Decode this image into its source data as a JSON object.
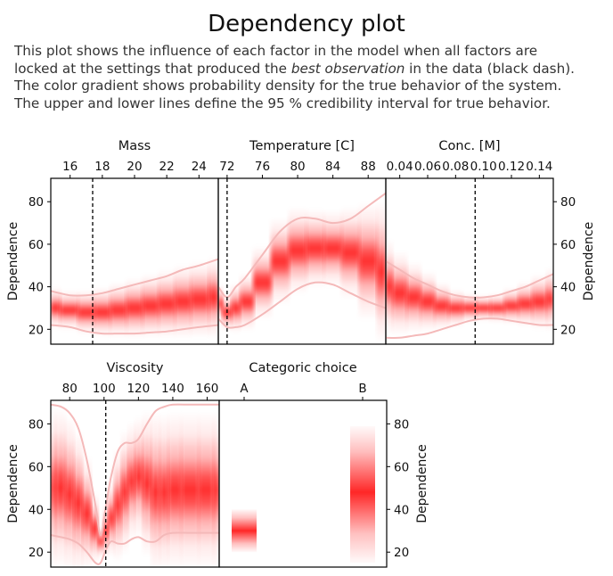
{
  "title": "Dependency plot",
  "description": {
    "line1": "This plot shows the influence of each factor in the model when all factors are",
    "line2_pre": "locked at the settings that produced the ",
    "line2_em": "best observation",
    "line2_post": " in the data (black dash).",
    "line3": "The color gradient shows probability density for the true behavior of the system.",
    "line4": "The upper and lower lines define the 95 % credibility interval for true behavior."
  },
  "colors": {
    "density": "#ff0000",
    "interval": "#f4b9b9",
    "marker": "#000000"
  },
  "chart_data": [
    {
      "type": "area",
      "title": "Mass",
      "ylabel": "Dependence",
      "ylabel_side": "left",
      "xlim": [
        14.8,
        25.2
      ],
      "ylim": [
        13,
        91
      ],
      "x_ticks": [
        16,
        18,
        20,
        22,
        24
      ],
      "y_ticks": [
        20,
        40,
        60,
        80
      ],
      "best_x": 17.4,
      "x": [
        14.8,
        16,
        17,
        18,
        19,
        20,
        21,
        22,
        23,
        24,
        25.2
      ],
      "mean": [
        30,
        29,
        28,
        28,
        29,
        30,
        31,
        32,
        33,
        34,
        35
      ],
      "lower": [
        22,
        21,
        19,
        18,
        18,
        18,
        18.5,
        19,
        20,
        21,
        22
      ],
      "upper": [
        38,
        36,
        36,
        37,
        39,
        41,
        43,
        45,
        48,
        50,
        53
      ]
    },
    {
      "type": "area",
      "title": "Temperature [C]",
      "ylabel": "",
      "xlim": [
        71,
        90
      ],
      "ylim": [
        13,
        91
      ],
      "x_ticks": [
        72,
        76,
        80,
        84,
        88
      ],
      "y_ticks": [],
      "best_x": 72,
      "x": [
        71,
        72,
        73,
        74,
        76,
        78,
        80,
        82,
        84,
        86,
        88,
        90
      ],
      "mean": [
        32,
        28,
        30,
        33,
        42,
        52,
        57,
        58,
        58,
        56,
        52,
        47
      ],
      "lower": [
        25,
        21,
        21,
        22,
        27,
        33,
        39,
        42,
        41,
        37,
        33,
        30
      ],
      "upper": [
        40,
        35,
        40,
        44,
        55,
        66,
        72,
        72,
        70,
        72,
        78,
        84
      ]
    },
    {
      "type": "area",
      "title": "Conc. [M]",
      "ylabel": "Dependence",
      "ylabel_side": "right",
      "xlim": [
        0.03,
        0.15
      ],
      "ylim": [
        13,
        91
      ],
      "x_ticks": [
        0.04,
        0.06,
        0.08,
        0.1,
        0.12,
        0.14
      ],
      "tick_labels": [
        "0.04",
        "0.06",
        "0.08",
        "0.10",
        "0.12",
        "0.14"
      ],
      "y_ticks": [
        20,
        40,
        60,
        80
      ],
      "best_x": 0.094,
      "x": [
        0.03,
        0.04,
        0.05,
        0.06,
        0.07,
        0.08,
        0.09,
        0.1,
        0.11,
        0.12,
        0.13,
        0.14,
        0.15
      ],
      "mean": [
        40,
        37,
        35,
        33,
        31,
        30,
        30,
        30,
        30,
        31,
        32,
        33,
        34
      ],
      "lower": [
        16,
        16,
        17,
        18,
        20,
        22,
        24,
        25,
        25,
        24,
        23,
        22,
        22
      ],
      "upper": [
        52,
        48,
        44,
        41,
        38,
        36,
        35,
        35,
        36,
        38,
        40,
        43,
        46
      ]
    },
    {
      "type": "area",
      "title": "Viscosity",
      "ylabel": "Dependence",
      "ylabel_side": "left",
      "xlim": [
        69,
        167
      ],
      "ylim": [
        13,
        91
      ],
      "x_ticks": [
        80,
        100,
        120,
        140,
        160
      ],
      "y_ticks": [
        20,
        40,
        60,
        80
      ],
      "best_x": 101,
      "x": [
        69,
        75,
        80,
        85,
        90,
        95,
        98,
        101,
        104,
        108,
        112,
        116,
        120,
        125,
        130,
        135,
        140,
        150,
        160,
        167
      ],
      "mean": [
        50,
        50,
        47,
        43,
        38,
        31,
        25,
        30,
        36,
        42,
        48,
        53,
        55,
        52,
        48,
        48,
        49,
        49,
        49,
        49
      ],
      "lower": [
        28,
        27,
        26,
        24,
        20,
        15,
        15,
        21,
        25,
        24,
        24,
        26,
        27,
        25,
        25,
        28,
        29,
        29,
        29,
        29
      ],
      "upper": [
        89,
        88,
        85,
        78,
        63,
        42,
        28,
        41,
        55,
        67,
        71,
        71,
        73,
        80,
        86,
        88,
        89,
        89,
        89,
        89
      ]
    },
    {
      "type": "bar",
      "title": "Categoric choice",
      "ylabel": "Dependence",
      "ylabel_side": "right",
      "ylim": [
        13,
        91
      ],
      "y_ticks": [
        20,
        40,
        60,
        80
      ],
      "categories": [
        "A",
        "B"
      ],
      "mean": [
        30,
        48
      ],
      "lower": [
        20,
        15
      ],
      "upper": [
        40,
        79
      ]
    }
  ]
}
